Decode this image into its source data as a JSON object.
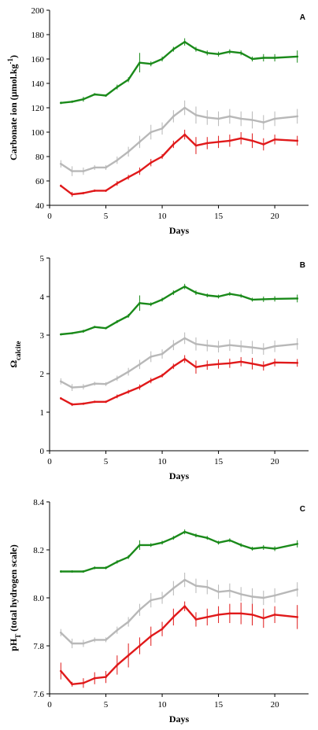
{
  "colors": {
    "green": "#1a8a1a",
    "gray": "#b8b8b8",
    "red": "#e0191a",
    "axis": "#000000"
  },
  "chart_data": [
    {
      "type": "line",
      "panel_label": "A",
      "xlabel": "Days",
      "ylabel_main": "Carbonate ion (µmol.kg",
      "ylabel_sup": "-1",
      "ylabel_end": ")",
      "xlim": [
        0,
        23
      ],
      "ylim": [
        40,
        200
      ],
      "xticks": [
        0,
        5,
        10,
        15,
        20
      ],
      "yticks": [
        40,
        60,
        80,
        100,
        120,
        140,
        160,
        180,
        200
      ],
      "x": [
        1,
        2,
        3,
        4,
        5,
        6,
        7,
        8,
        9,
        10,
        11,
        12,
        13,
        14,
        15,
        16,
        17,
        18,
        19,
        20,
        22
      ],
      "series": [
        {
          "color": "green",
          "values": [
            124,
            125,
            127,
            131,
            130,
            137,
            143,
            157,
            156,
            160,
            168,
            174,
            168,
            165,
            164,
            166,
            165,
            160,
            161,
            161,
            162
          ],
          "errors": [
            1,
            1,
            2,
            1,
            1,
            2,
            2,
            8,
            2,
            2,
            2,
            3,
            2,
            2,
            2,
            2,
            2,
            2,
            3,
            3,
            5
          ]
        },
        {
          "color": "gray",
          "values": [
            74,
            68,
            68,
            71,
            71,
            77,
            84,
            92,
            100,
            103,
            113,
            120,
            114,
            112,
            111,
            113,
            111,
            110,
            108,
            111,
            113
          ],
          "errors": [
            3,
            4,
            3,
            2,
            2,
            3,
            4,
            5,
            6,
            5,
            5,
            6,
            7,
            6,
            6,
            6,
            6,
            7,
            6,
            6,
            6
          ]
        },
        {
          "color": "red",
          "values": [
            56,
            49,
            50,
            52,
            52,
            58,
            63,
            68,
            75,
            80,
            90,
            98,
            89,
            91,
            92,
            93,
            95,
            93,
            90,
            94,
            93
          ],
          "errors": [
            1,
            2,
            1,
            1,
            1,
            2,
            2,
            3,
            3,
            2,
            3,
            4,
            7,
            5,
            5,
            5,
            5,
            6,
            5,
            4,
            4
          ]
        }
      ]
    },
    {
      "type": "line",
      "panel_label": "B",
      "xlabel": "Days",
      "ylabel_main": "Ω",
      "ylabel_sub": "calcite",
      "xlim": [
        0,
        23
      ],
      "ylim": [
        0,
        5
      ],
      "xticks": [
        0,
        5,
        10,
        15,
        20
      ],
      "yticks": [
        0,
        1,
        2,
        3,
        4,
        5
      ],
      "x": [
        1,
        2,
        3,
        4,
        5,
        6,
        7,
        8,
        9,
        10,
        11,
        12,
        13,
        14,
        15,
        16,
        17,
        18,
        19,
        20,
        22
      ],
      "series": [
        {
          "color": "green",
          "values": [
            3.02,
            3.05,
            3.1,
            3.21,
            3.18,
            3.35,
            3.5,
            3.83,
            3.8,
            3.92,
            4.1,
            4.26,
            4.1,
            4.03,
            4.0,
            4.07,
            4.02,
            3.92,
            3.93,
            3.94,
            3.95
          ],
          "errors": [
            0.02,
            0.02,
            0.04,
            0.03,
            0.03,
            0.04,
            0.05,
            0.2,
            0.05,
            0.05,
            0.06,
            0.07,
            0.06,
            0.05,
            0.05,
            0.05,
            0.05,
            0.05,
            0.07,
            0.07,
            0.1
          ]
        },
        {
          "color": "gray",
          "values": [
            1.8,
            1.64,
            1.66,
            1.74,
            1.73,
            1.88,
            2.05,
            2.24,
            2.44,
            2.51,
            2.74,
            2.92,
            2.77,
            2.73,
            2.7,
            2.74,
            2.71,
            2.68,
            2.64,
            2.71,
            2.77
          ],
          "errors": [
            0.08,
            0.09,
            0.07,
            0.05,
            0.05,
            0.07,
            0.1,
            0.12,
            0.14,
            0.12,
            0.13,
            0.15,
            0.17,
            0.15,
            0.15,
            0.15,
            0.15,
            0.17,
            0.15,
            0.15,
            0.15
          ]
        },
        {
          "color": "red",
          "values": [
            1.36,
            1.2,
            1.22,
            1.27,
            1.27,
            1.41,
            1.53,
            1.65,
            1.82,
            1.95,
            2.19,
            2.38,
            2.17,
            2.22,
            2.25,
            2.27,
            2.31,
            2.26,
            2.2,
            2.29,
            2.28
          ],
          "errors": [
            0.03,
            0.04,
            0.03,
            0.03,
            0.03,
            0.05,
            0.05,
            0.07,
            0.07,
            0.05,
            0.07,
            0.1,
            0.17,
            0.12,
            0.12,
            0.12,
            0.12,
            0.15,
            0.12,
            0.1,
            0.1
          ]
        }
      ]
    },
    {
      "type": "line",
      "panel_label": "C",
      "xlabel": "Days",
      "ylabel_main": "pH",
      "ylabel_sub": "T",
      "ylabel_end": " (total hydrogen scale)",
      "xlim": [
        0,
        23
      ],
      "ylim": [
        7.6,
        8.4
      ],
      "xticks": [
        0,
        5,
        10,
        15,
        20
      ],
      "yticks": [
        7.6,
        7.8,
        8.0,
        8.2,
        8.4
      ],
      "x": [
        1,
        2,
        3,
        4,
        5,
        6,
        7,
        8,
        9,
        10,
        11,
        12,
        13,
        14,
        15,
        16,
        17,
        18,
        19,
        20,
        22
      ],
      "series": [
        {
          "color": "green",
          "values": [
            8.11,
            8.11,
            8.11,
            8.125,
            8.125,
            8.15,
            8.17,
            8.22,
            8.22,
            8.23,
            8.25,
            8.275,
            8.26,
            8.25,
            8.23,
            8.24,
            8.22,
            8.205,
            8.21,
            8.205,
            8.225
          ],
          "errors": [
            0.005,
            0.005,
            0.005,
            0.006,
            0.006,
            0.007,
            0.008,
            0.02,
            0.008,
            0.008,
            0.008,
            0.01,
            0.008,
            0.008,
            0.008,
            0.008,
            0.008,
            0.008,
            0.01,
            0.01,
            0.015
          ]
        },
        {
          "color": "gray",
          "values": [
            7.855,
            7.81,
            7.81,
            7.825,
            7.825,
            7.865,
            7.9,
            7.95,
            7.99,
            8.0,
            8.04,
            8.075,
            8.05,
            8.045,
            8.025,
            8.03,
            8.015,
            8.005,
            8.0,
            8.01,
            8.035
          ],
          "errors": [
            0.015,
            0.02,
            0.015,
            0.01,
            0.01,
            0.015,
            0.02,
            0.025,
            0.03,
            0.025,
            0.03,
            0.03,
            0.03,
            0.03,
            0.03,
            0.03,
            0.03,
            0.035,
            0.03,
            0.03,
            0.03
          ]
        },
        {
          "color": "red",
          "values": [
            7.695,
            7.64,
            7.645,
            7.665,
            7.67,
            7.72,
            7.76,
            7.8,
            7.84,
            7.87,
            7.92,
            7.965,
            7.91,
            7.92,
            7.93,
            7.935,
            7.935,
            7.93,
            7.915,
            7.93,
            7.92
          ],
          "errors": [
            0.035,
            0.01,
            0.02,
            0.025,
            0.025,
            0.04,
            0.05,
            0.035,
            0.04,
            0.03,
            0.035,
            0.02,
            0.03,
            0.035,
            0.035,
            0.04,
            0.045,
            0.045,
            0.04,
            0.035,
            0.05
          ]
        }
      ]
    }
  ]
}
